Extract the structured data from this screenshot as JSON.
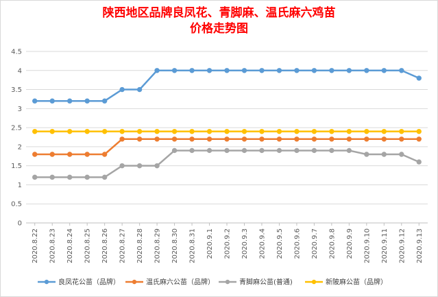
{
  "chart_data": {
    "type": "line",
    "title_line1": "陕西地区品牌良凤花、青脚麻、温氏麻六鸡苗",
    "title_line2": "价格走势图",
    "categories": [
      "2020.8.22",
      "2020.8.23",
      "2020.8.24",
      "2020.8.25",
      "2020.8.26",
      "2020.8.27",
      "2020.8.28",
      "2020.8.29",
      "2020.8.30",
      "2020.8.31",
      "2020.9.1",
      "2020.9.2",
      "2020.9.3",
      "2020.9.4",
      "2020.9.5",
      "2020.9.6",
      "2020.9.7",
      "2020.9.8",
      "2020.9.9",
      "2020.9.10",
      "2020.9.11",
      "2020.9.12",
      "2020.9.13"
    ],
    "ylim": [
      0,
      4.5
    ],
    "yticks": [
      "0",
      "0.5",
      "1",
      "1.5",
      "2",
      "2.5",
      "3",
      "3.5",
      "4",
      "4.5"
    ],
    "grid": true,
    "legend_position": "bottom",
    "series": [
      {
        "name": "良凤花公苗（品牌）",
        "color": "#5b9bd5",
        "values": [
          3.2,
          3.2,
          3.2,
          3.2,
          3.2,
          3.5,
          3.5,
          4,
          4,
          4,
          4,
          4,
          4,
          4,
          4,
          4,
          4,
          4,
          4,
          4,
          4,
          4,
          3.8
        ]
      },
      {
        "name": "温氏麻六公苗（品牌）",
        "color": "#ed7d31",
        "values": [
          1.8,
          1.8,
          1.8,
          1.8,
          1.8,
          2.2,
          2.2,
          2.2,
          2.2,
          2.2,
          2.2,
          2.2,
          2.2,
          2.2,
          2.2,
          2.2,
          2.2,
          2.2,
          2.2,
          2.2,
          2.2,
          2.2,
          2.2
        ]
      },
      {
        "name": "青脚麻公苗(普通)",
        "color": "#a5a5a5",
        "values": [
          1.2,
          1.2,
          1.2,
          1.2,
          1.2,
          1.5,
          1.5,
          1.5,
          1.9,
          1.9,
          1.9,
          1.9,
          1.9,
          1.9,
          1.9,
          1.9,
          1.9,
          1.9,
          1.9,
          1.8,
          1.8,
          1.8,
          1.6
        ]
      },
      {
        "name": "新陂麻公苗（品牌）",
        "color": "#ffc000",
        "values": [
          2.4,
          2.4,
          2.4,
          2.4,
          2.4,
          2.4,
          2.4,
          2.4,
          2.4,
          2.4,
          2.4,
          2.4,
          2.4,
          2.4,
          2.4,
          2.4,
          2.4,
          2.4,
          2.4,
          2.4,
          2.4,
          2.4,
          2.4
        ]
      }
    ]
  }
}
